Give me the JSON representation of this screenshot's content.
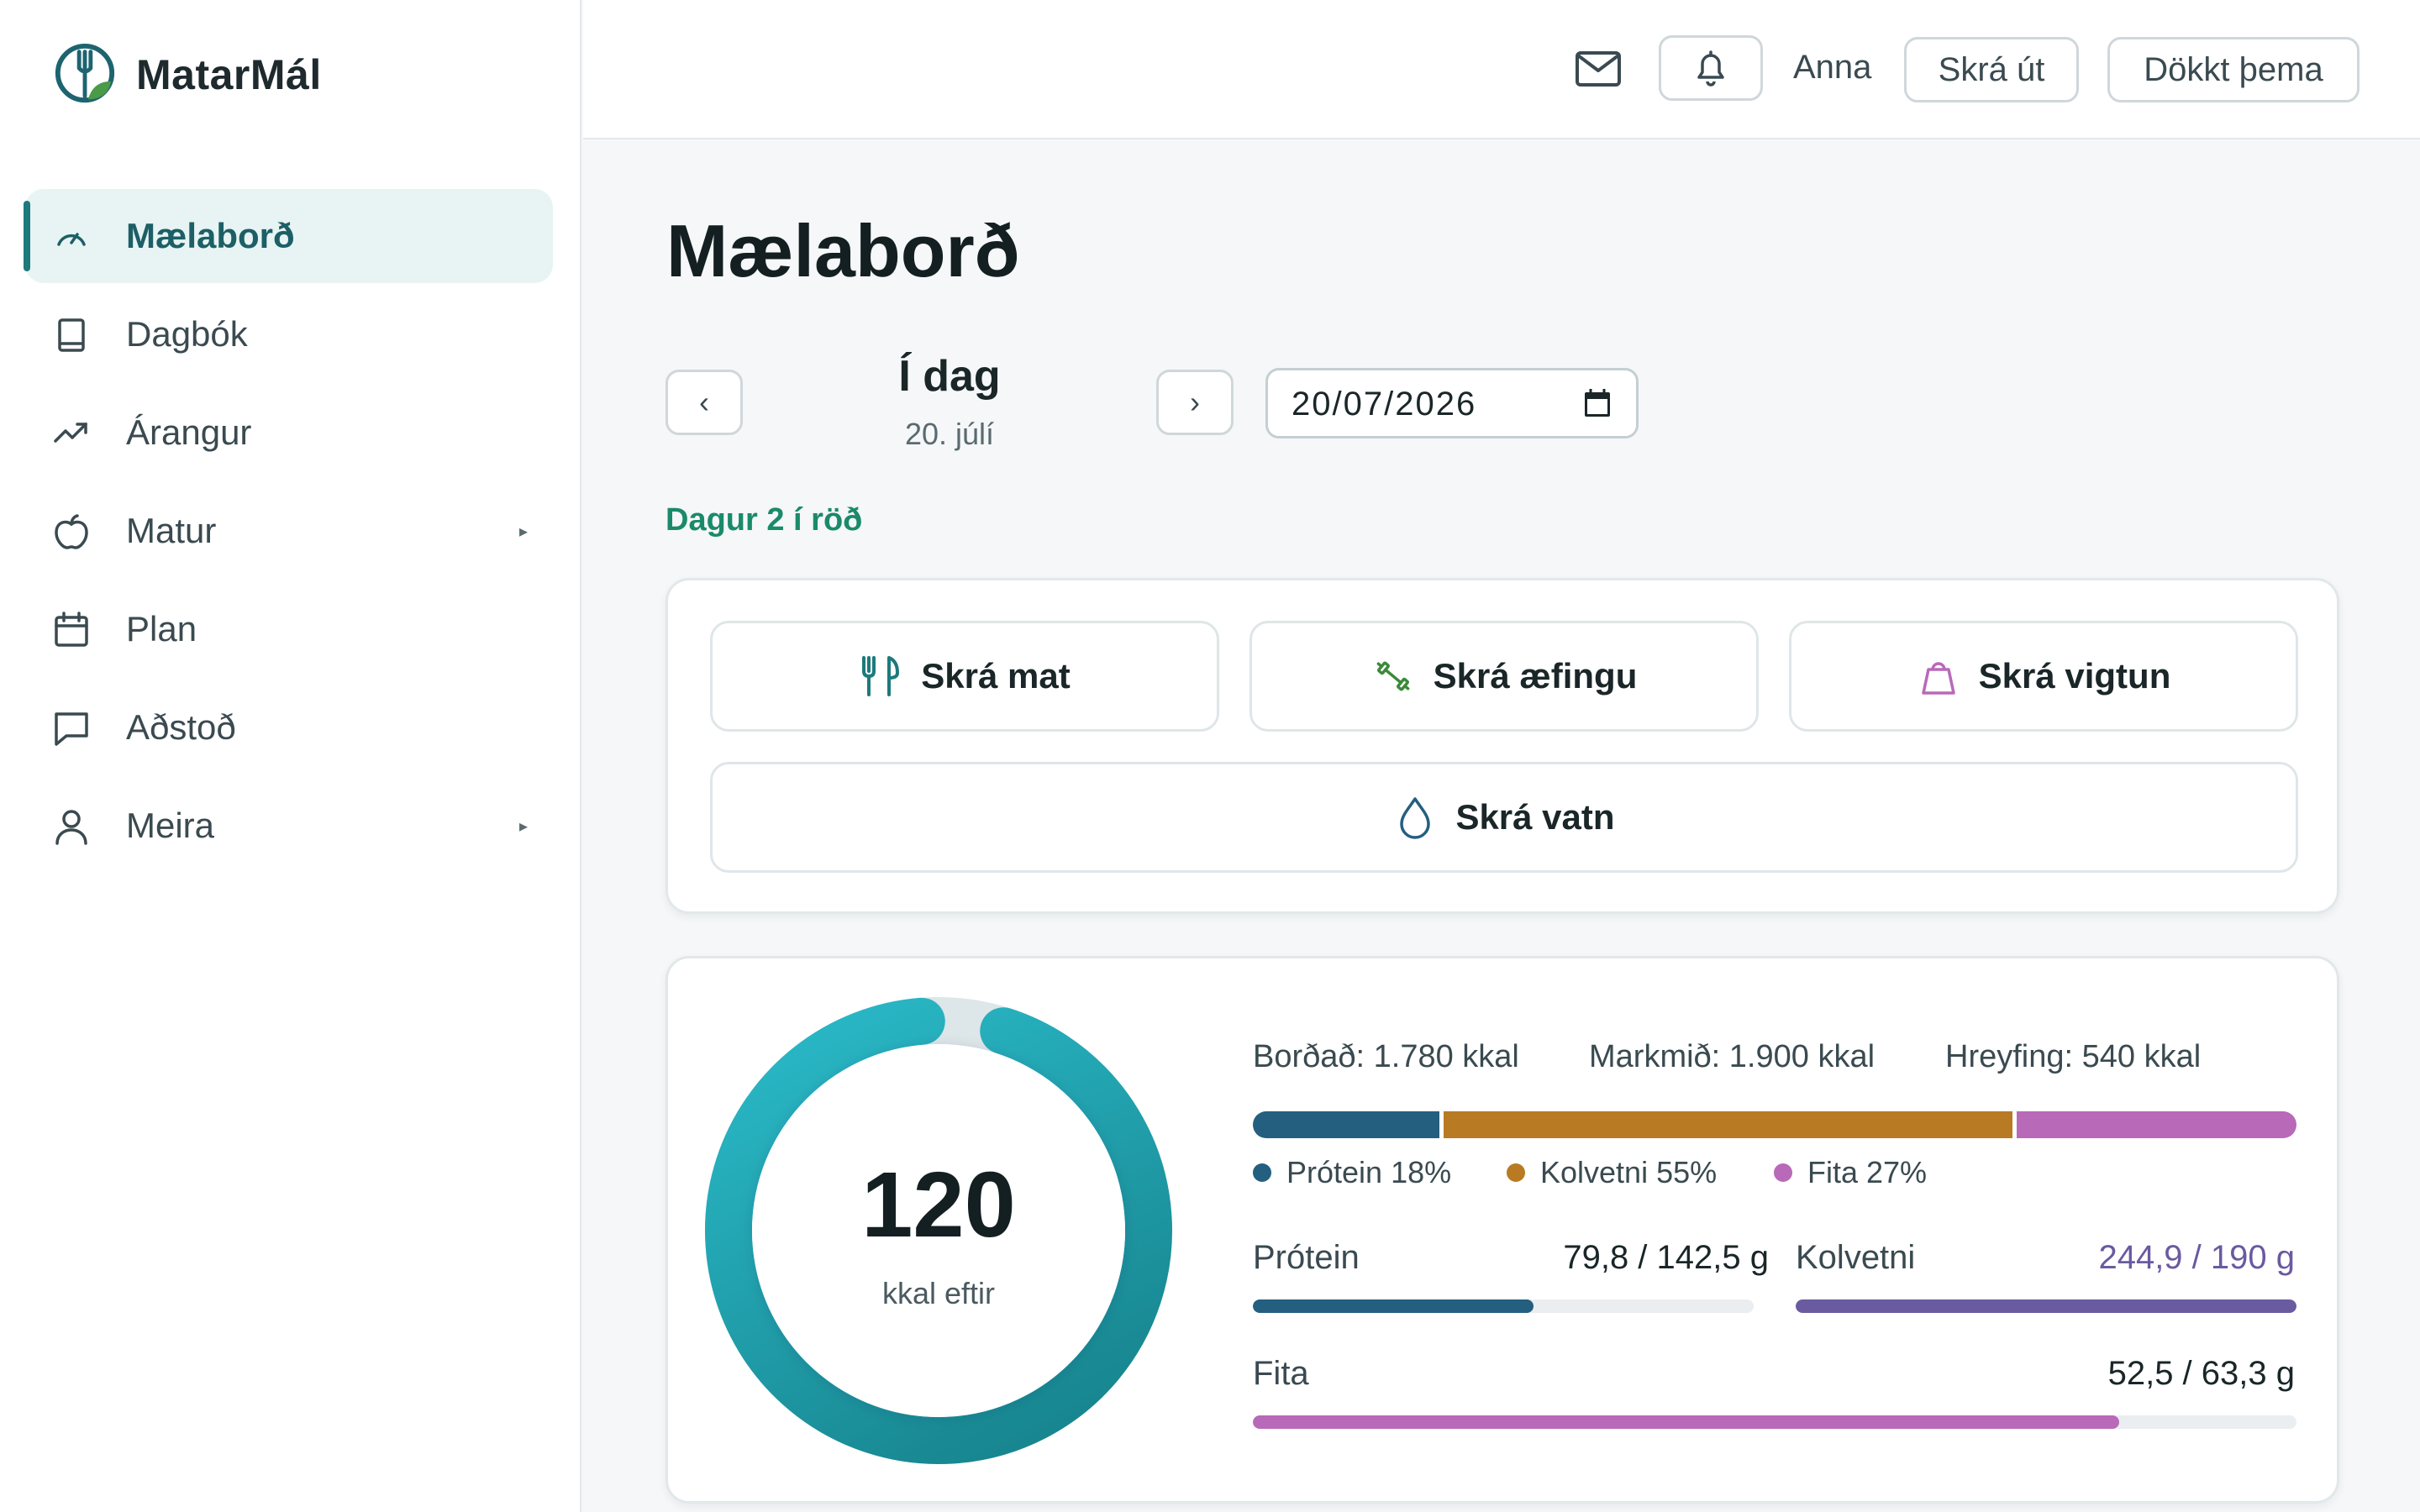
{
  "app": {
    "name": "MatarMál"
  },
  "sidebar": {
    "items": [
      {
        "label": "Mælaborð",
        "icon": "gauge-icon",
        "active": true
      },
      {
        "label": "Dagbók",
        "icon": "book-icon"
      },
      {
        "label": "Árangur",
        "icon": "trending-up-icon"
      },
      {
        "label": "Matur",
        "icon": "apple-icon",
        "has_submenu": true
      },
      {
        "label": "Plan",
        "icon": "calendar-icon"
      },
      {
        "label": "Aðstoð",
        "icon": "chat-icon"
      },
      {
        "label": "Meira",
        "icon": "user-icon",
        "has_submenu": true
      }
    ],
    "caret": "▸"
  },
  "header": {
    "user_name": "Anna",
    "logout_label": "Skrá út",
    "theme_label": "Dökkt þema"
  },
  "page": {
    "title": "Mælaborð",
    "day_title": "Í dag",
    "day_subtitle": "20. júlí",
    "prev_label": "‹",
    "next_label": "›",
    "date_value": "20/07/2026",
    "streak": "Dagur 2 í röð"
  },
  "actions": {
    "log_food": "Skrá mat",
    "log_exercise": "Skrá æfingu",
    "log_weight": "Skrá vigtun",
    "log_water": "Skrá vatn"
  },
  "summary": {
    "kcal_remaining": "120",
    "kcal_remaining_label": "kkal eftir",
    "eaten": "Borðað: 1.780 kkal",
    "goal": "Markmið: 1.900 kkal",
    "exercise": "Hreyfing: 540 kkal",
    "ring_progress": 0.937,
    "split": [
      {
        "name": "Prótein",
        "percent": 18,
        "label": "Prótein 18%",
        "color": "#245f80"
      },
      {
        "name": "Kolvetni",
        "percent": 55,
        "label": "Kolvetni 55%",
        "color": "#b87a22"
      },
      {
        "name": "Fita",
        "percent": 27,
        "label": "Fita 27%",
        "color": "#b86ab8"
      }
    ],
    "macros": [
      {
        "name": "Prótein",
        "value": "79,8 / 142,5 g",
        "fraction": 0.56,
        "color": "#245f80",
        "value_color": "#1a2628"
      },
      {
        "name": "Kolvetni",
        "value": "244,9 / 190 g",
        "fraction": 1.0,
        "color": "#6a5aa0",
        "value_color": "#6a5aa0"
      },
      {
        "name": "Fita",
        "value": "52,5 / 63,3 g",
        "fraction": 0.83,
        "color": "#b86ab8",
        "value_color": "#1a2628"
      }
    ]
  }
}
